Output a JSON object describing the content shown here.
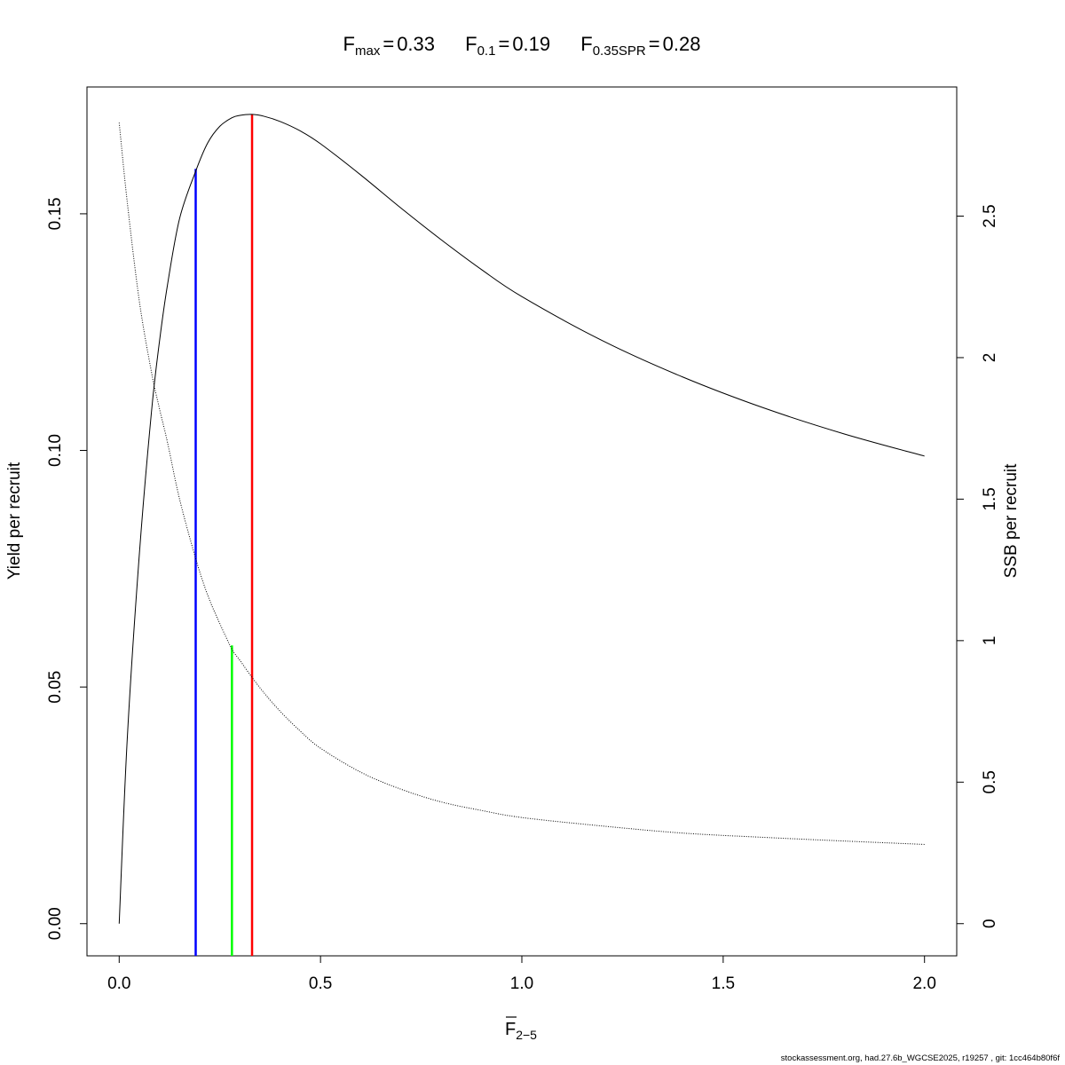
{
  "chart_data": {
    "type": "line",
    "title": {
      "fmax": {
        "sym": "F",
        "sub": "max",
        "eq": "=",
        "val": "0.33"
      },
      "f01": {
        "sym": "F",
        "sub": "0.1",
        "eq": "=",
        "val": "0.19"
      },
      "fspr": {
        "sym": "F",
        "sub": "0.35SPR",
        "eq": "=",
        "val": "0.28"
      }
    },
    "xlabel": {
      "sym": "F",
      "sub": "2−5"
    },
    "ylabel": "Yield per recruit",
    "y2label": "SSB per recruit",
    "xlim": [
      -0.08,
      2.08
    ],
    "ylim": [
      -0.0068,
      0.1768
    ],
    "y2lim": [
      -0.1137,
      2.9563
    ],
    "x_ticks": [
      {
        "value": 0.0,
        "label": "0.0"
      },
      {
        "value": 0.5,
        "label": "0.5"
      },
      {
        "value": 1.0,
        "label": "1.0"
      },
      {
        "value": 1.5,
        "label": "1.5"
      },
      {
        "value": 2.0,
        "label": "2.0"
      }
    ],
    "y_ticks": [
      {
        "value": 0.0,
        "label": "0.00"
      },
      {
        "value": 0.05,
        "label": "0.05"
      },
      {
        "value": 0.1,
        "label": "0.10"
      },
      {
        "value": 0.15,
        "label": "0.15"
      }
    ],
    "y2_ticks": [
      {
        "value": 0,
        "label": "0"
      },
      {
        "value": 0.5,
        "label": "0.5"
      },
      {
        "value": 1,
        "label": "1"
      },
      {
        "value": 1.5,
        "label": "1.5"
      },
      {
        "value": 2,
        "label": "2"
      },
      {
        "value": 2.5,
        "label": "2.5"
      }
    ],
    "series": [
      {
        "axis": "left",
        "style": "solid",
        "color": "#000000",
        "x": [
          0,
          0.02,
          0.05,
          0.08,
          0.1,
          0.12,
          0.15,
          0.19,
          0.22,
          0.25,
          0.28,
          0.3,
          0.33,
          0.36,
          0.4,
          0.45,
          0.5,
          0.6,
          0.7,
          0.8,
          0.9,
          1.0,
          1.2,
          1.4,
          1.6,
          1.8,
          2.0
        ],
        "values": [
          0.0,
          0.039,
          0.078,
          0.108,
          0.123,
          0.135,
          0.149,
          0.159,
          0.165,
          0.1685,
          0.1703,
          0.1708,
          0.171,
          0.1706,
          0.1695,
          0.1675,
          0.1648,
          0.1582,
          0.1512,
          0.1445,
          0.1382,
          0.1325,
          0.1232,
          0.1155,
          0.109,
          0.1035,
          0.0988
        ]
      },
      {
        "axis": "right",
        "style": "dotted",
        "color": "#000000",
        "x": [
          0,
          0.02,
          0.05,
          0.08,
          0.1,
          0.12,
          0.15,
          0.19,
          0.22,
          0.25,
          0.28,
          0.3,
          0.33,
          0.36,
          0.4,
          0.45,
          0.5,
          0.6,
          0.7,
          0.8,
          0.9,
          1.0,
          1.2,
          1.4,
          1.6,
          1.8,
          2.0
        ],
        "values": [
          2.83,
          2.55,
          2.2,
          1.95,
          1.82,
          1.7,
          1.5,
          1.29,
          1.16,
          1.06,
          0.97,
          0.93,
          0.87,
          0.815,
          0.75,
          0.68,
          0.62,
          0.535,
          0.475,
          0.43,
          0.4,
          0.375,
          0.345,
          0.32,
          0.305,
          0.292,
          0.28
        ]
      }
    ],
    "reference_lines": [
      {
        "name": "F0.1",
        "x": 0.19,
        "y_top": 0.1595,
        "color": "#0000ff"
      },
      {
        "name": "F0.35SPR",
        "x": 0.28,
        "y_top": 0.0588,
        "color": "#00ff00"
      },
      {
        "name": "Fmax",
        "x": 0.33,
        "y_top": 0.171,
        "color": "#ff0000"
      }
    ]
  },
  "footer": "stockassessment.org, had.27.6b_WGCSE2025, r19257 , git: 1cc464b80f6f"
}
